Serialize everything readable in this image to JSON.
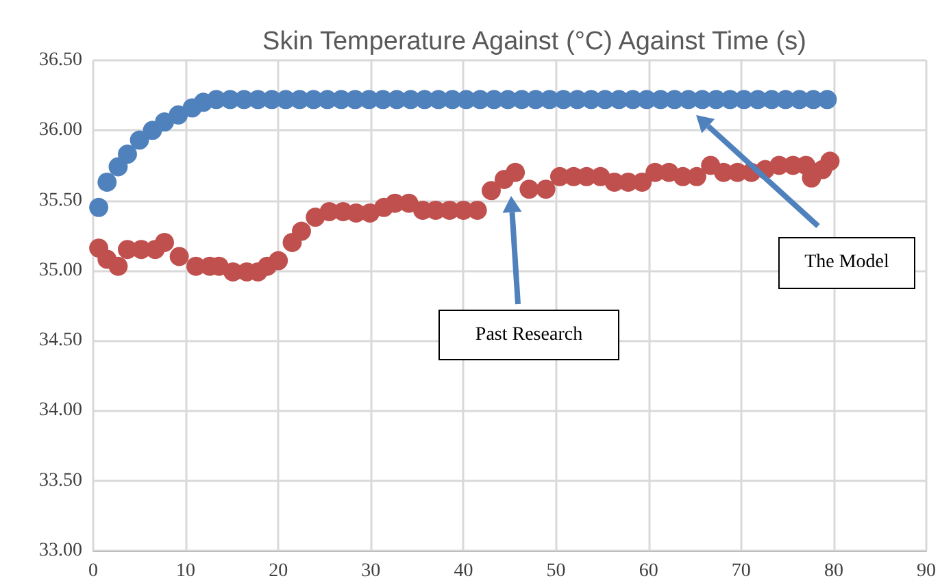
{
  "chart_data": {
    "type": "scatter",
    "title": "Skin Temperature Against (°C) Against Time (s)",
    "xlim": [
      0,
      90
    ],
    "xticks": [
      0,
      10,
      20,
      30,
      40,
      50,
      60,
      70,
      80,
      90
    ],
    "ylim": [
      33,
      36.5
    ],
    "yticks": [
      {
        "value": 33,
        "label": "33.00"
      },
      {
        "value": 33.5,
        "label": "33.50"
      },
      {
        "value": 34,
        "label": "34.00"
      },
      {
        "value": 34.5,
        "label": "34.50"
      },
      {
        "value": 35,
        "label": "35.00"
      },
      {
        "value": 35.5,
        "label": "35.50"
      },
      {
        "value": 36,
        "label": "36.00"
      },
      {
        "value": 36.5,
        "label": "36.50"
      }
    ],
    "grid": true,
    "marker": "circle",
    "series": [
      {
        "color": "#4f81bd",
        "x": [
          0.6,
          1.5,
          2.7,
          3.7,
          5,
          6.4,
          7.7,
          9.2,
          10.7,
          11.9,
          13.3,
          14.8,
          16.3,
          17.8,
          19.3,
          20.8,
          22.3,
          23.8,
          25.3,
          26.8,
          28.3,
          29.8,
          31.3,
          32.8,
          34.3,
          35.8,
          37.3,
          38.8,
          40.3,
          41.8,
          43.3,
          44.8,
          46.3,
          47.8,
          49.3,
          50.8,
          52.3,
          53.8,
          55.3,
          56.8,
          58.3,
          59.8,
          61.3,
          62.8,
          64.3,
          65.8,
          67.3,
          68.8,
          70.3,
          71.8,
          73.3,
          74.8,
          76.3,
          77.8,
          79.3
        ],
        "values": [
          35.45,
          35.63,
          35.74,
          35.83,
          35.93,
          36.0,
          36.06,
          36.11,
          36.16,
          36.2,
          36.22,
          36.22,
          36.22,
          36.22,
          36.22,
          36.22,
          36.22,
          36.22,
          36.22,
          36.22,
          36.22,
          36.22,
          36.22,
          36.22,
          36.22,
          36.22,
          36.22,
          36.22,
          36.22,
          36.22,
          36.22,
          36.22,
          36.22,
          36.22,
          36.22,
          36.22,
          36.22,
          36.22,
          36.22,
          36.22,
          36.22,
          36.22,
          36.22,
          36.22,
          36.22,
          36.22,
          36.22,
          36.22,
          36.22,
          36.22,
          36.22,
          36.22,
          36.22,
          36.22,
          36.22
        ]
      },
      {
        "color": "#c0504d",
        "x": [
          0.6,
          1.5,
          2.7,
          3.7,
          5.2,
          6.7,
          7.7,
          9.3,
          11.1,
          12.6,
          13.6,
          15.1,
          16.6,
          17.8,
          18.8,
          20,
          21.5,
          22.5,
          24,
          25.5,
          27,
          28.4,
          29.9,
          31.4,
          32.6,
          34.1,
          35.6,
          37,
          38.5,
          40,
          41.5,
          43,
          44.4,
          45.6,
          47.1,
          48.9,
          50.4,
          51.9,
          53.3,
          54.8,
          56.3,
          57.8,
          59.3,
          60.7,
          62.2,
          63.7,
          65.2,
          66.7,
          68.1,
          69.6,
          71.1,
          72.6,
          74.1,
          75.6,
          77,
          77.6,
          78.8,
          79.6
        ],
        "values": [
          35.16,
          35.08,
          35.03,
          35.15,
          35.15,
          35.15,
          35.2,
          35.1,
          35.03,
          35.03,
          35.03,
          34.99,
          34.99,
          34.99,
          35.03,
          35.07,
          35.2,
          35.28,
          35.38,
          35.42,
          35.42,
          35.41,
          35.41,
          35.45,
          35.48,
          35.48,
          35.43,
          35.43,
          35.43,
          35.43,
          35.43,
          35.57,
          35.65,
          35.7,
          35.58,
          35.58,
          35.67,
          35.67,
          35.67,
          35.67,
          35.63,
          35.63,
          35.63,
          35.7,
          35.7,
          35.67,
          35.67,
          35.75,
          35.7,
          35.7,
          35.7,
          35.72,
          35.75,
          35.75,
          35.75,
          35.66,
          35.72,
          35.78
        ]
      }
    ],
    "annotations": [
      "Past Research",
      "The Model"
    ]
  }
}
